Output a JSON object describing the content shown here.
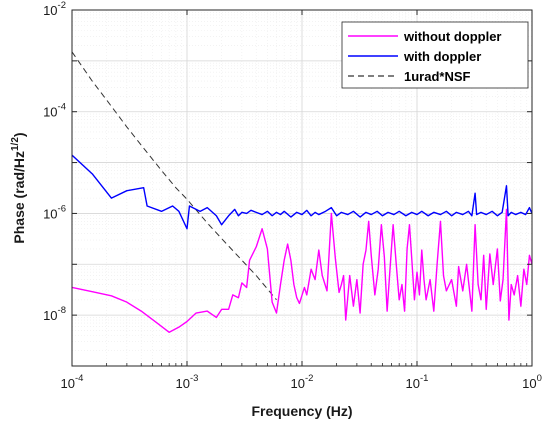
{
  "chart_data": {
    "type": "line",
    "title": "",
    "xlabel": "Frequency (Hz)",
    "ylabel": "Phase (rad/Hz^{1/2})",
    "ylabel_base": "Phase (rad/Hz",
    "ylabel_exp": "1/2",
    "ylabel_close": ")",
    "xscale": "log",
    "yscale": "log",
    "xlim": [
      0.0001,
      1
    ],
    "ylim": [
      1e-09,
      0.01
    ],
    "grid": true,
    "legend_position": "top-right",
    "x_ticks": [
      {
        "base": "10",
        "exp": "-4"
      },
      {
        "base": "10",
        "exp": "-3"
      },
      {
        "base": "10",
        "exp": "-2"
      },
      {
        "base": "10",
        "exp": "-1"
      },
      {
        "base": "10",
        "exp": "0"
      }
    ],
    "y_ticks": [
      {
        "base": "10",
        "exp": "-8"
      },
      {
        "base": "10",
        "exp": "-6"
      },
      {
        "base": "10",
        "exp": "-4"
      },
      {
        "base": "10",
        "exp": "-2"
      }
    ],
    "series": [
      {
        "name": "without doppler",
        "color": "#ff00ff",
        "dash": "none",
        "points": [
          [
            0.0001,
            3.5e-08
          ],
          [
            0.00015,
            2.9e-08
          ],
          [
            0.00022,
            2.4e-08
          ],
          [
            0.0003,
            1.8e-08
          ],
          [
            0.0004,
            1.2e-08
          ],
          [
            0.00055,
            7e-09
          ],
          [
            0.0007,
            4.6e-09
          ],
          [
            0.00085,
            5.8e-09
          ],
          [
            0.001,
            7.5e-09
          ],
          [
            0.0012,
            1.1e-08
          ],
          [
            0.0015,
            1.2e-08
          ],
          [
            0.0018,
            9e-09
          ],
          [
            0.002,
            1.3e-08
          ],
          [
            0.0023,
            1.3e-08
          ],
          [
            0.0025,
            2.5e-08
          ],
          [
            0.0028,
            2.2e-08
          ],
          [
            0.003,
            4.3e-08
          ],
          [
            0.0033,
            3.5e-08
          ],
          [
            0.0035,
            1.2e-07
          ],
          [
            0.004,
            2.2e-07
          ],
          [
            0.0045,
            5e-07
          ],
          [
            0.005,
            2e-07
          ],
          [
            0.0055,
            1.8e-08
          ],
          [
            0.006,
            1.1e-08
          ],
          [
            0.0065,
            4e-08
          ],
          [
            0.007,
            1.2e-07
          ],
          [
            0.0075,
            2.5e-07
          ],
          [
            0.008,
            1.2e-07
          ],
          [
            0.0085,
            4e-08
          ],
          [
            0.009,
            2.2e-08
          ],
          [
            0.0095,
            1.7e-08
          ],
          [
            0.0105,
            3.5e-08
          ],
          [
            0.011,
            2.5e-08
          ],
          [
            0.012,
            8e-08
          ],
          [
            0.013,
            5e-08
          ],
          [
            0.014,
            1.9e-07
          ],
          [
            0.015,
            6e-08
          ],
          [
            0.0165,
            3e-08
          ],
          [
            0.018,
            1e-06
          ],
          [
            0.0195,
            1.3e-07
          ],
          [
            0.021,
            2.8e-08
          ],
          [
            0.022,
            4e-08
          ],
          [
            0.023,
            6e-08
          ],
          [
            0.024,
            8e-09
          ],
          [
            0.026,
            6e-08
          ],
          [
            0.028,
            1.5e-08
          ],
          [
            0.03,
            5e-08
          ],
          [
            0.032,
            1.1e-08
          ],
          [
            0.034,
            1e-07
          ],
          [
            0.036,
            1.9e-07
          ],
          [
            0.038,
            7e-07
          ],
          [
            0.04,
            1.5e-07
          ],
          [
            0.043,
            2.5e-08
          ],
          [
            0.046,
            8e-08
          ],
          [
            0.049,
            6e-07
          ],
          [
            0.052,
            1.4e-07
          ],
          [
            0.055,
            1.2e-08
          ],
          [
            0.058,
            7e-08
          ],
          [
            0.062,
            6e-07
          ],
          [
            0.066,
            1e-07
          ],
          [
            0.07,
            2e-08
          ],
          [
            0.074,
            4e-08
          ],
          [
            0.078,
            1.2e-08
          ],
          [
            0.082,
            2e-07
          ],
          [
            0.086,
            6e-07
          ],
          [
            0.09,
            1.3e-07
          ],
          [
            0.095,
            2e-08
          ],
          [
            0.1,
            7e-08
          ],
          [
            0.105,
            2.5e-08
          ],
          [
            0.11,
            1.9e-07
          ],
          [
            0.115,
            5e-08
          ],
          [
            0.12,
            2e-08
          ],
          [
            0.13,
            5e-08
          ],
          [
            0.14,
            1.2e-08
          ],
          [
            0.15,
            1.1e-07
          ],
          [
            0.16,
            7e-07
          ],
          [
            0.17,
            6e-08
          ],
          [
            0.18,
            3e-08
          ],
          [
            0.2,
            5e-08
          ],
          [
            0.22,
            1.5e-08
          ],
          [
            0.23,
            9e-08
          ],
          [
            0.25,
            3e-08
          ],
          [
            0.27,
            1e-07
          ],
          [
            0.3,
            1.2e-08
          ],
          [
            0.32,
            6e-07
          ],
          [
            0.34,
            4e-08
          ],
          [
            0.36,
            2e-08
          ],
          [
            0.38,
            1.5e-07
          ],
          [
            0.4,
            1.3e-08
          ],
          [
            0.43,
            1.6e-07
          ],
          [
            0.46,
            4e-08
          ],
          [
            0.5,
            2e-07
          ],
          [
            0.53,
            1.9e-08
          ],
          [
            0.56,
            5e-08
          ],
          [
            0.6,
            1.2e-06
          ],
          [
            0.63,
            8e-09
          ],
          [
            0.66,
            4e-08
          ],
          [
            0.7,
            2.5e-08
          ],
          [
            0.75,
            6e-08
          ],
          [
            0.8,
            1.5e-08
          ],
          [
            0.85,
            8e-08
          ],
          [
            0.9,
            4e-08
          ],
          [
            0.95,
            1.5e-07
          ],
          [
            1.0,
            1e-07
          ]
        ]
      },
      {
        "name": "with doppler",
        "color": "#0000ff",
        "dash": "none",
        "points": [
          [
            0.0001,
            1.4e-05
          ],
          [
            0.00015,
            6e-06
          ],
          [
            0.00022,
            2e-06
          ],
          [
            0.0003,
            2.8e-06
          ],
          [
            0.00042,
            3.2e-06
          ],
          [
            0.00045,
            1.4e-06
          ],
          [
            0.0006,
            1.1e-06
          ],
          [
            0.00075,
            1.4e-06
          ],
          [
            0.00085,
            1.1e-06
          ],
          [
            0.001,
            5e-07
          ],
          [
            0.00105,
            1.4e-06
          ],
          [
            0.0013,
            1.1e-06
          ],
          [
            0.0015,
            1.3e-06
          ],
          [
            0.0018,
            9e-07
          ],
          [
            0.002,
            6e-07
          ],
          [
            0.0023,
            9e-07
          ],
          [
            0.0026,
            1.2e-06
          ],
          [
            0.0028,
            9e-07
          ],
          [
            0.003,
            1.05e-06
          ],
          [
            0.0033,
            1e-06
          ],
          [
            0.0036,
            1.15e-06
          ],
          [
            0.004,
            1.05e-06
          ],
          [
            0.0045,
            9.5e-07
          ],
          [
            0.005,
            1.1e-06
          ],
          [
            0.0055,
            9e-07
          ],
          [
            0.006,
            1.05e-06
          ],
          [
            0.0065,
            9.5e-07
          ],
          [
            0.007,
            1.1e-06
          ],
          [
            0.008,
            8.5e-07
          ],
          [
            0.009,
            1.05e-06
          ],
          [
            0.01,
            9.5e-07
          ],
          [
            0.011,
            1.15e-06
          ],
          [
            0.012,
            9e-07
          ],
          [
            0.013,
            1.05e-06
          ],
          [
            0.014,
            9.5e-07
          ],
          [
            0.016,
            1.1e-06
          ],
          [
            0.018,
            1.3e-06
          ],
          [
            0.02,
            9e-07
          ],
          [
            0.022,
            1.05e-06
          ],
          [
            0.025,
            9.5e-07
          ],
          [
            0.028,
            1.1e-06
          ],
          [
            0.032,
            8.5e-07
          ],
          [
            0.036,
            1.05e-06
          ],
          [
            0.04,
            9.5e-07
          ],
          [
            0.045,
            1.1e-06
          ],
          [
            0.05,
            9e-07
          ],
          [
            0.056,
            1.05e-06
          ],
          [
            0.063,
            9.5e-07
          ],
          [
            0.07,
            1.1e-06
          ],
          [
            0.08,
            9e-07
          ],
          [
            0.09,
            1.05e-06
          ],
          [
            0.1,
            9.5e-07
          ],
          [
            0.11,
            1.1e-06
          ],
          [
            0.125,
            9e-07
          ],
          [
            0.14,
            1.05e-06
          ],
          [
            0.16,
            9.5e-07
          ],
          [
            0.18,
            1.1e-06
          ],
          [
            0.2,
            9e-07
          ],
          [
            0.22,
            1.05e-06
          ],
          [
            0.25,
            9.5e-07
          ],
          [
            0.28,
            1.1e-06
          ],
          [
            0.3,
            9e-07
          ],
          [
            0.32,
            2.5e-06
          ],
          [
            0.33,
            9.5e-07
          ],
          [
            0.36,
            1.05e-06
          ],
          [
            0.4,
            9.5e-07
          ],
          [
            0.45,
            1.1e-06
          ],
          [
            0.5,
            9e-07
          ],
          [
            0.55,
            1.05e-06
          ],
          [
            0.6,
            3.5e-06
          ],
          [
            0.62,
            9e-07
          ],
          [
            0.66,
            1.05e-06
          ],
          [
            0.72,
            9.5e-07
          ],
          [
            0.8,
            1.05e-06
          ],
          [
            0.88,
            9.5e-07
          ],
          [
            0.95,
            1.3e-06
          ],
          [
            1.0,
            1e-06
          ]
        ]
      },
      {
        "name": "1urad*NSF",
        "color": "#333333",
        "dash": "6 4",
        "points": [
          [
            0.0001,
            0.0015
          ],
          [
            0.00015,
            0.0004
          ],
          [
            0.0002,
            0.00017
          ],
          [
            0.0003,
            5e-05
          ],
          [
            0.0004,
            2.2e-05
          ],
          [
            0.0006,
            7e-06
          ],
          [
            0.0008,
            3.2e-06
          ],
          [
            0.001,
            1.9e-06
          ],
          [
            0.0015,
            6.5e-07
          ],
          [
            0.002,
            3.2e-07
          ],
          [
            0.003,
            1.2e-07
          ],
          [
            0.004,
            6e-08
          ],
          [
            0.006,
            2e-08
          ]
        ]
      }
    ]
  }
}
